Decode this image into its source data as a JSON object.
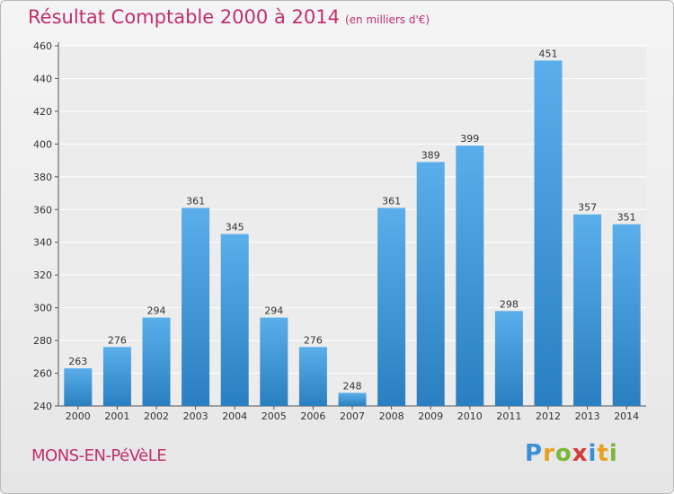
{
  "title": "Résultat Comptable 2000 à 2014",
  "subtitle": "(en milliers d'€)",
  "commune": "MONS-EN-PéVèLE",
  "logo": {
    "letters": [
      "P",
      "r",
      "o",
      "x",
      "i",
      "t",
      "i"
    ],
    "colors": [
      "#3a8fd6",
      "#e8a020",
      "#7bb83a",
      "#d63a3a",
      "#3a8fd6",
      "#e8a020",
      "#7bb83a"
    ]
  },
  "colors": {
    "bar_top": "#5aaeea",
    "bar_bottom": "#2a7fc0",
    "title": "#c0306a"
  },
  "chart_data": {
    "type": "bar",
    "categories": [
      "2000",
      "2001",
      "2002",
      "2003",
      "2004",
      "2005",
      "2006",
      "2007",
      "2008",
      "2009",
      "2010",
      "2011",
      "2012",
      "2013",
      "2014"
    ],
    "values": [
      263,
      276,
      294,
      361,
      345,
      294,
      276,
      248,
      361,
      389,
      399,
      298,
      451,
      357,
      351
    ],
    "ylim": [
      240,
      460
    ],
    "yticks": [
      240,
      260,
      280,
      300,
      320,
      340,
      360,
      380,
      400,
      420,
      440,
      460
    ],
    "grid": true,
    "data_labels": true
  }
}
